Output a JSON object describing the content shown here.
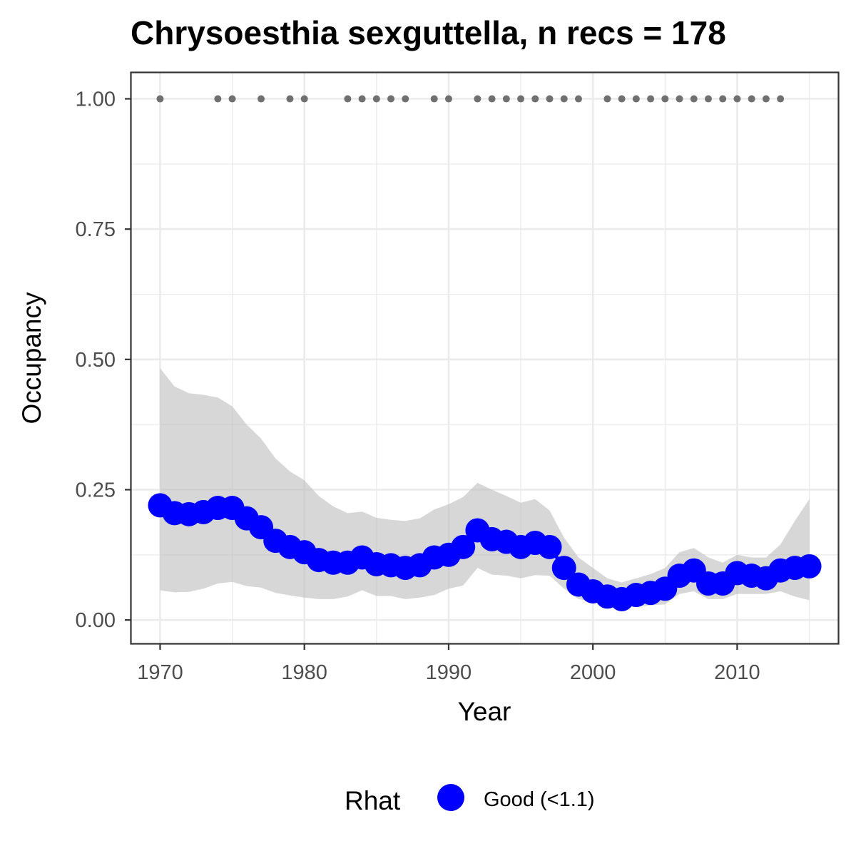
{
  "chart_data": {
    "type": "line",
    "title": "Chrysoesthia sexguttella, n recs = 178",
    "xlabel": "Year",
    "ylabel": "Occupancy",
    "xlim": [
      1968,
      2017
    ],
    "ylim": [
      -0.045,
      1.05
    ],
    "x_ticks": [
      1970,
      1980,
      1990,
      2000,
      2010
    ],
    "y_ticks": [
      0,
      0.25,
      0.5,
      0.75,
      1
    ],
    "x_tick_labels": [
      "1970",
      "1980",
      "1990",
      "2000",
      "2010"
    ],
    "y_tick_labels": [
      "0.00",
      "0.25",
      "0.50",
      "0.75",
      "1.00"
    ],
    "grid": true,
    "legend": {
      "title": "Rhat",
      "position": "bottom",
      "entries": [
        {
          "label": "Good (<1.1)",
          "color": "#0000ff"
        }
      ]
    },
    "colors": {
      "series": "#0000ff",
      "ribbon": "#bebebe",
      "record_dots": "#707070",
      "grid": "#ebebeb",
      "panel_border": "#333333"
    },
    "series": [
      {
        "name": "Good (<1.1)",
        "x": [
          1970,
          1971,
          1972,
          1973,
          1974,
          1975,
          1976,
          1977,
          1978,
          1979,
          1980,
          1981,
          1982,
          1983,
          1984,
          1985,
          1986,
          1987,
          1988,
          1989,
          1990,
          1991,
          1992,
          1993,
          1994,
          1995,
          1996,
          1997,
          1998,
          1999,
          2000,
          2001,
          2002,
          2003,
          2004,
          2005,
          2006,
          2007,
          2008,
          2009,
          2010,
          2011,
          2012,
          2013,
          2014,
          2015
        ],
        "values": [
          0.22,
          0.205,
          0.203,
          0.207,
          0.215,
          0.215,
          0.195,
          0.178,
          0.152,
          0.14,
          0.13,
          0.115,
          0.11,
          0.11,
          0.12,
          0.107,
          0.105,
          0.1,
          0.105,
          0.12,
          0.125,
          0.14,
          0.172,
          0.155,
          0.15,
          0.14,
          0.148,
          0.14,
          0.1,
          0.068,
          0.055,
          0.045,
          0.04,
          0.048,
          0.052,
          0.06,
          0.085,
          0.095,
          0.07,
          0.07,
          0.09,
          0.085,
          0.08,
          0.095,
          0.1,
          0.103
        ],
        "lower": [
          0.057,
          0.053,
          0.054,
          0.06,
          0.07,
          0.073,
          0.065,
          0.062,
          0.052,
          0.047,
          0.043,
          0.04,
          0.04,
          0.045,
          0.057,
          0.046,
          0.046,
          0.04,
          0.043,
          0.048,
          0.06,
          0.066,
          0.1,
          0.087,
          0.085,
          0.08,
          0.086,
          0.085,
          0.06,
          0.04,
          0.035,
          0.03,
          0.025,
          0.025,
          0.028,
          0.03,
          0.05,
          0.055,
          0.04,
          0.04,
          0.05,
          0.05,
          0.05,
          0.055,
          0.045,
          0.038
        ],
        "upper": [
          0.483,
          0.448,
          0.435,
          0.432,
          0.427,
          0.41,
          0.375,
          0.348,
          0.31,
          0.285,
          0.268,
          0.238,
          0.218,
          0.205,
          0.208,
          0.196,
          0.192,
          0.19,
          0.195,
          0.212,
          0.222,
          0.236,
          0.263,
          0.25,
          0.238,
          0.225,
          0.232,
          0.21,
          0.158,
          0.12,
          0.1,
          0.08,
          0.072,
          0.08,
          0.088,
          0.1,
          0.13,
          0.138,
          0.12,
          0.11,
          0.125,
          0.12,
          0.12,
          0.145,
          0.19,
          0.232
        ]
      }
    ],
    "records": {
      "y": 1,
      "years": [
        1970,
        1974,
        1975,
        1977,
        1979,
        1980,
        1983,
        1984,
        1985,
        1986,
        1987,
        1989,
        1990,
        1992,
        1993,
        1994,
        1995,
        1996,
        1997,
        1998,
        1999,
        2001,
        2002,
        2003,
        2004,
        2005,
        2006,
        2007,
        2008,
        2009,
        2010,
        2011,
        2012,
        2013
      ]
    }
  }
}
